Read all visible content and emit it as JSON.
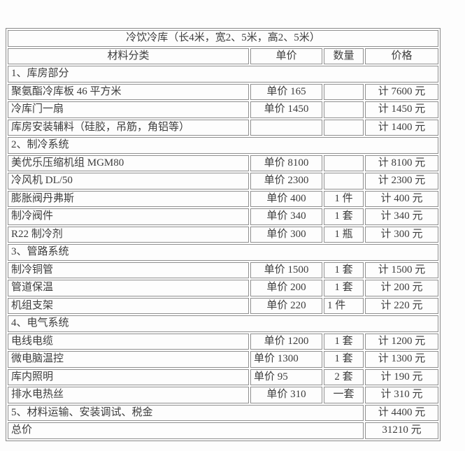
{
  "table": {
    "title": "冷饮冷库（长4米，宽2、5米，高2、5米）",
    "headers": [
      "材料分类",
      "单价",
      "数量",
      "价格"
    ],
    "rows": [
      {
        "type": "section",
        "label": "1、库房部分"
      },
      {
        "type": "item",
        "name": "聚氨酯冷库板 46 平方米",
        "unit_price": "单价 165",
        "qty": "",
        "price": "计 7600 元"
      },
      {
        "type": "item",
        "name": "冷库门一扇",
        "unit_price": "单价 1450",
        "qty": "",
        "price": "计 1450 元"
      },
      {
        "type": "item",
        "name": "库房安装辅料（硅胶，吊筋，角铝等）",
        "unit_price": "",
        "qty": "",
        "price": "计 1400 元"
      },
      {
        "type": "section",
        "label": "2、制冷系统"
      },
      {
        "type": "item",
        "name": "美优乐压缩机组 MGM80",
        "unit_price": "单价 8100",
        "qty": "",
        "price": "计 8100 元"
      },
      {
        "type": "item",
        "name": "冷风机 DL/50",
        "unit_price": "单价 2300",
        "qty": "",
        "price": "计 2300 元"
      },
      {
        "type": "item",
        "name": "膨胀阀丹弗斯",
        "unit_price": "单价 400",
        "qty": "1 件",
        "price": "计 400 元"
      },
      {
        "type": "item",
        "name": "制冷阀件",
        "unit_price": "单价 340",
        "qty": "1 套",
        "price": "计 340 元"
      },
      {
        "type": "item",
        "name": "R22 制冷剂",
        "unit_price": "单价 300",
        "qty": "1 瓶",
        "price": "计 300 元"
      },
      {
        "type": "section",
        "label": "3、管路系统"
      },
      {
        "type": "item",
        "name": "制冷铜管",
        "unit_price": "单价 1500",
        "qty": "1 套",
        "price": "计 1500 元"
      },
      {
        "type": "item",
        "name": "管道保温",
        "unit_price": "单价 200",
        "qty": "1 套",
        "price": "计 200 元"
      },
      {
        "type": "item",
        "name": "机组支架",
        "unit_price": "单价 220",
        "qty": "1 件",
        "qty_align": "left",
        "price": "计 220 元"
      },
      {
        "type": "section",
        "label": "4、电气系统"
      },
      {
        "type": "item",
        "name": "电线电缆",
        "unit_price": "单价 1200",
        "qty": "1 套",
        "price": "计 1200 元"
      },
      {
        "type": "item",
        "name": "微电脑温控",
        "unit_price": "单价 1300",
        "unit_align": "left",
        "qty": "1 套",
        "price": "计 1300 元"
      },
      {
        "type": "item",
        "name": "库内照明",
        "unit_price": "单价 95",
        "unit_align": "left",
        "qty": "2 套",
        "price": "计 190 元"
      },
      {
        "type": "item",
        "name": "排水电热丝",
        "unit_price": "单价 310",
        "qty": "一套",
        "price": "计 310 元"
      },
      {
        "type": "span",
        "label": "5、材料运输、安装调试、税金",
        "price": "计 4400 元"
      },
      {
        "type": "span",
        "label": "总价",
        "price": "31210 元"
      }
    ]
  }
}
